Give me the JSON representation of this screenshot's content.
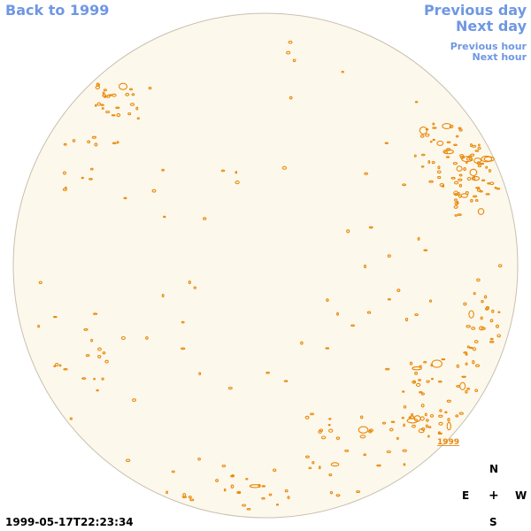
{
  "nav": {
    "back": "Back to 1999",
    "previous_day": "Previous day",
    "next_day": "Next day",
    "previous_hour": "Previous hour",
    "next_hour": "Next hour"
  },
  "map": {
    "region_label": "1999",
    "disk_color": "#fdf8ec",
    "disk_border_color": "#c8c0b0",
    "contour_color": "#e8890a"
  },
  "compass": {
    "north": "N",
    "east": "E",
    "center": "+",
    "west": "W",
    "south": "S"
  },
  "timestamp": "1999-05-17T22:23:34"
}
